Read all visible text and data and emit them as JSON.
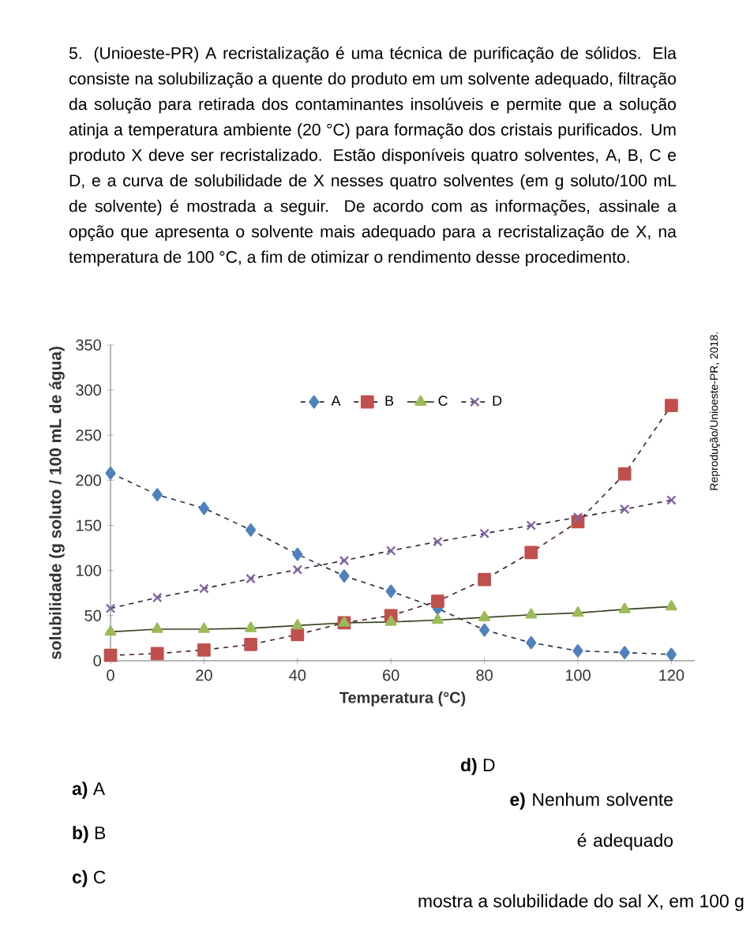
{
  "chart_data": {
    "type": "line",
    "title": "5. (Unioeste-PR) A recristalização é uma técnica de purificação de sólidos. Ela consiste na solubilização a quente do produto em um solvente adequado, filtração da solução para retirada dos contaminantes insolúveis e permite que a solução atinja a temperatura ambiente (20 °C) para formação dos cristais purificados. Um produto X deve ser recristalizado. Estão disponíveis quatro solventes, A, B, C e D, e a curva de solubilidade de X nesses quatro solventes (em g soluto/100 mL de solvente) é mostrada a seguir. De acordo com as informações, assinale a opção que apresenta o solvente mais adequado para a recristalização de X, na temperatura de 100 °C, a fim de otimizar o rendimento desse procedimento.",
    "xlabel": "Temperatura (°C)",
    "ylabel": "solubilidade (g soluto / 100 mL de água)",
    "x": [
      0,
      10,
      20,
      30,
      40,
      50,
      60,
      70,
      80,
      90,
      100,
      110,
      120
    ],
    "series": [
      {
        "name": "A",
        "color": "#4f81bd",
        "marker": "diamond",
        "line_style": "dashed",
        "values": [
          208,
          184,
          169,
          145,
          118,
          94,
          77,
          58,
          34,
          20,
          11,
          9,
          7
        ]
      },
      {
        "name": "B",
        "color": "#c0504d",
        "marker": "square",
        "line_style": "dashed",
        "values": [
          6,
          8,
          12,
          18,
          29,
          42,
          50,
          66,
          90,
          120,
          154,
          207,
          283
        ]
      },
      {
        "name": "C",
        "color": "#9bbb59",
        "marker": "triangle",
        "line_style": "solid",
        "values": [
          32,
          35,
          35,
          36,
          39,
          42,
          43,
          45,
          48,
          51,
          53,
          57,
          60
        ]
      },
      {
        "name": "D",
        "color": "#8064a2",
        "marker": "cross",
        "line_style": "dashed",
        "values": [
          58,
          70,
          80,
          91,
          101,
          111,
          122,
          132,
          141,
          150,
          159,
          168,
          178
        ]
      }
    ],
    "xlim": [
      0,
      125
    ],
    "ylim": [
      0,
      350
    ],
    "xticks": [
      0,
      20,
      40,
      60,
      80,
      100,
      120
    ],
    "yticks": [
      0,
      50,
      100,
      150,
      200,
      250,
      300,
      350
    ],
    "grid": false,
    "legend": "top",
    "annotations": [
      "Reprodução/Unioeste-PR, 2018.",
      "**a)** A",
      "**b)** B",
      "**c)** C",
      "**d)** D",
      "**e)** Nenhum solvente é adequado",
      "mostra a solubilidade do sal X, em 100 g"
    ]
  }
}
